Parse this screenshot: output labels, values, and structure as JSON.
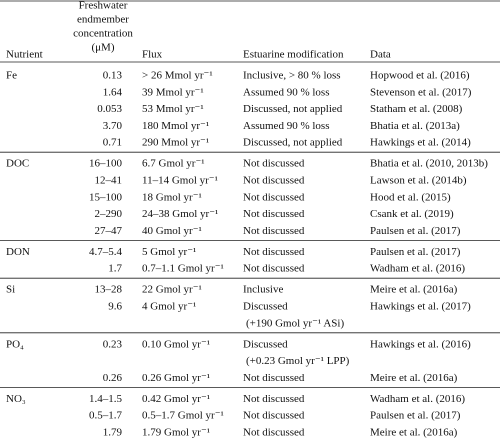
{
  "header": {
    "nutrient": "Nutrient",
    "concentration": [
      "Freshwater",
      "endmember",
      "concentration",
      "(μM)"
    ],
    "flux": "Flux",
    "modification": "Estuarine modification",
    "data": "Data"
  },
  "groups": [
    {
      "nutrient": "Fe",
      "rows": [
        [
          "0.13",
          "> 26 Mmol yr⁻¹",
          [
            "Inclusive, > 80 % loss"
          ],
          "Hopwood et al. (2016)"
        ],
        [
          "1.64",
          "39 Mmol yr⁻¹",
          [
            "Assumed 90 % loss"
          ],
          "Stevenson et al. (2017)"
        ],
        [
          "0.053",
          "53 Mmol yr⁻¹",
          [
            "Discussed, not applied"
          ],
          "Statham et al. (2008)"
        ],
        [
          "3.70",
          "180 Mmol yr⁻¹",
          [
            "Assumed 90 % loss"
          ],
          "Bhatia et al. (2013a)"
        ],
        [
          "0.71",
          "290 Mmol yr⁻¹",
          [
            "Discussed, not applied"
          ],
          "Hawkings et al. (2014)"
        ]
      ]
    },
    {
      "nutrient": "DOC",
      "rows": [
        [
          "16–100",
          "6.7 Gmol yr⁻¹",
          [
            "Not discussed"
          ],
          "Bhatia et al. (2010, 2013b)"
        ],
        [
          "12–41",
          "11–14 Gmol yr⁻¹",
          [
            "Not discussed"
          ],
          "Lawson et al. (2014b)"
        ],
        [
          "15–100",
          "18 Gmol yr⁻¹",
          [
            "Not discussed"
          ],
          "Hood et al. (2015)"
        ],
        [
          "2–290",
          "24–38 Gmol yr⁻¹",
          [
            "Not discussed"
          ],
          "Csank et al. (2019)"
        ],
        [
          "27–47",
          "40 Gmol yr⁻¹",
          [
            "Not discussed"
          ],
          "Paulsen et al. (2017)"
        ]
      ]
    },
    {
      "nutrient": "DON",
      "rows": [
        [
          "4.7–5.4",
          "5 Gmol yr⁻¹",
          [
            "Not discussed"
          ],
          "Paulsen et al. (2017)"
        ],
        [
          "1.7",
          "0.7–1.1 Gmol yr⁻¹",
          [
            "Not discussed"
          ],
          "Wadham et al. (2016)"
        ]
      ]
    },
    {
      "nutrient": "Si",
      "rows": [
        [
          "13–28",
          "22 Gmol yr⁻¹",
          [
            "Inclusive"
          ],
          "Meire et al. (2016a)"
        ],
        [
          "9.6",
          "4 Gmol yr⁻¹",
          [
            "Discussed",
            "(+190 Gmol yr⁻¹ ASi)"
          ],
          "Hawkings et al. (2017)"
        ]
      ]
    },
    {
      "nutrient": "PO₄",
      "rows": [
        [
          "0.23",
          "0.10 Gmol yr⁻¹",
          [
            "Discussed",
            "(+0.23 Gmol yr⁻¹ LPP)"
          ],
          "Hawkings et al. (2016)"
        ],
        [
          "0.26",
          "0.26 Gmol yr⁻¹",
          [
            "Not discussed"
          ],
          "Meire et al. (2016a)"
        ]
      ]
    },
    {
      "nutrient": "NO₃",
      "rows": [
        [
          "1.4–1.5",
          "0.42 Gmol yr⁻¹",
          [
            "Not discussed"
          ],
          "Wadham et al. (2016)"
        ],
        [
          "0.5–1.7",
          "0.5–1.7 Gmol yr⁻¹",
          [
            "Not discussed"
          ],
          "Paulsen et al. (2017)"
        ],
        [
          "1.79",
          "1.79 Gmol yr⁻¹",
          [
            "Not discussed"
          ],
          "Meire et al. (2016a)"
        ]
      ]
    }
  ]
}
